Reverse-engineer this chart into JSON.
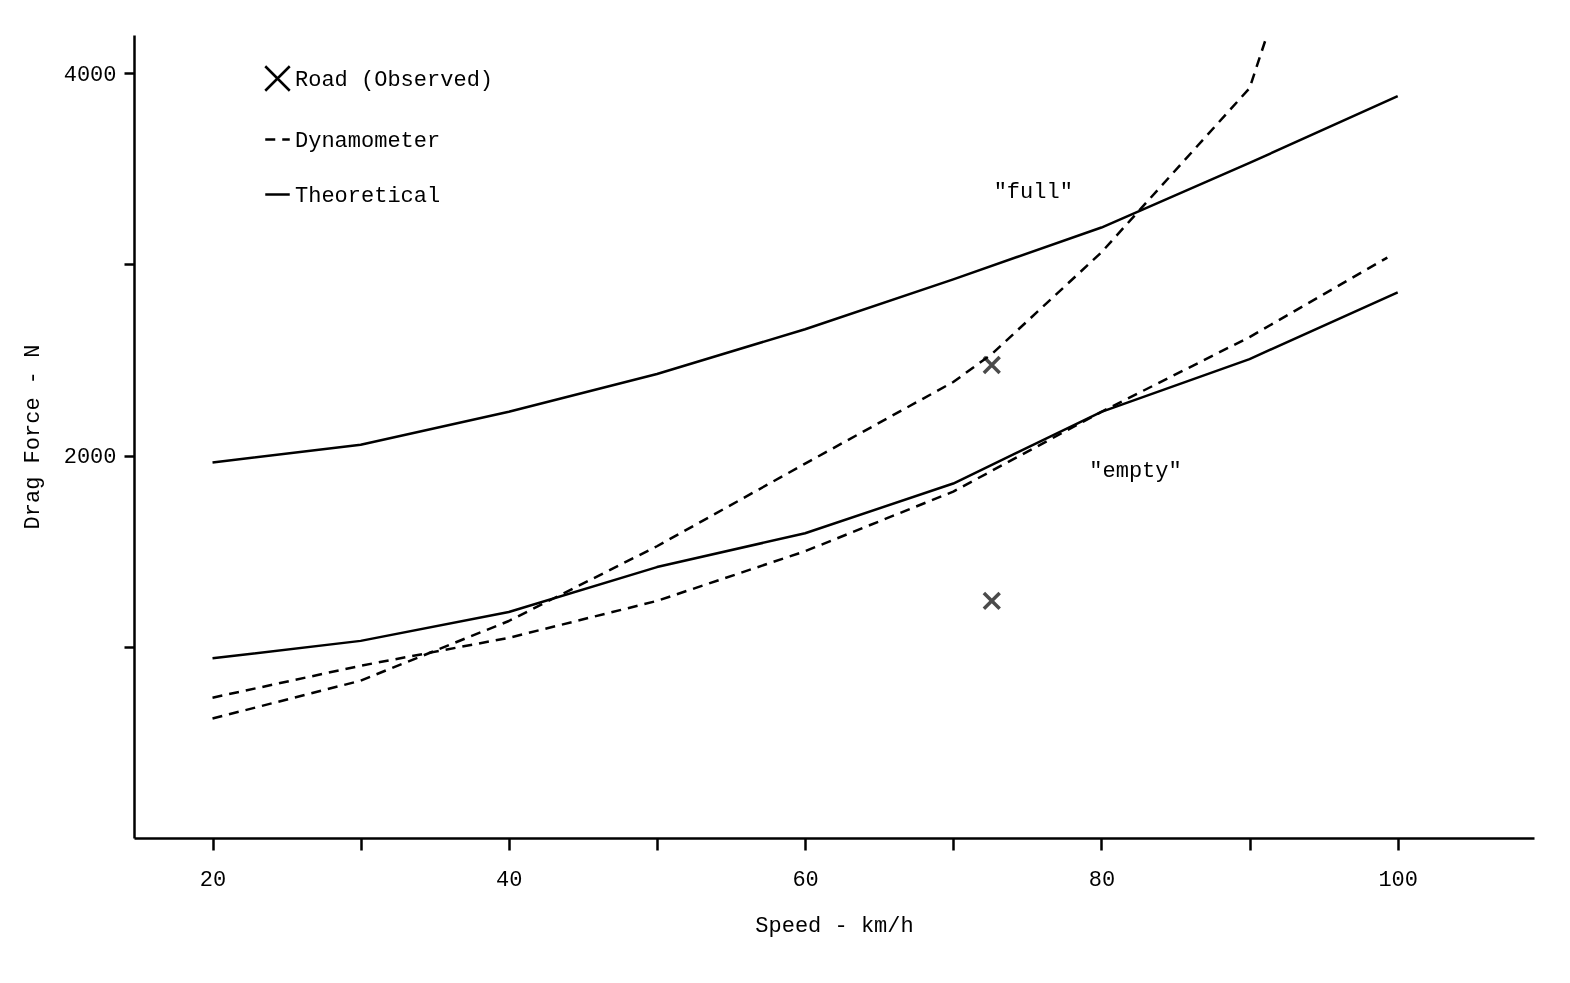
{
  "chart_data": {
    "type": "line",
    "xlabel": "Speed - km/h",
    "ylabel": "Drag Force - N",
    "xlim": [
      14.7,
      109.2
    ],
    "ylim": [
      0,
      4200
    ],
    "xticks": [
      20,
      {
        "value": 30,
        "label": null
      },
      40,
      {
        "value": 50,
        "label": null
      },
      60,
      {
        "value": 70,
        "label": null
      },
      80,
      {
        "value": 90,
        "label": null
      },
      100
    ],
    "yticks": [
      {
        "value": 1000,
        "label": null
      },
      2000,
      {
        "value": 3000,
        "label": null
      },
      4000
    ],
    "grid": false,
    "legend": "top left",
    "series": [
      {
        "name": "Road (Observed)",
        "type": "scatter",
        "marker": "cross",
        "color": "#000000",
        "x": [
          72.6,
          72.6
        ],
        "values": [
          2474,
          1240
        ]
      },
      {
        "name": "Dynamometer",
        "line_style": "dashed",
        "marker": "none",
        "color": "#000000",
        "x": [
          20,
          30,
          40,
          50,
          60,
          70,
          72.6,
          80,
          90,
          91.1
        ],
        "values": [
          625,
          823,
          1135,
          1526,
          1958,
          2385,
          2531,
          3063,
          3922,
          4180
        ]
      },
      {
        "line_style": "dashed",
        "marker": "none",
        "color": "#000000",
        "x": [
          20,
          30,
          40,
          50,
          60,
          70,
          80,
          90,
          99.3
        ],
        "values": [
          734,
          901,
          1047,
          1240,
          1500,
          1812,
          2229,
          2620,
          3036
        ]
      },
      {
        "name": "Theoretical",
        "line_style": "solid",
        "marker": "none",
        "color": "#000000",
        "x": [
          20,
          30,
          40,
          50,
          60,
          70,
          80,
          90,
          100
        ],
        "values": [
          1964,
          2057,
          2229,
          2427,
          2661,
          2922,
          3193,
          3531,
          3880
        ]
      },
      {
        "line_style": "solid",
        "marker": "none",
        "color": "#000000",
        "x": [
          20,
          30,
          40,
          50,
          60,
          70,
          80,
          90,
          100
        ],
        "values": [
          940,
          1031,
          1182,
          1417,
          1594,
          1854,
          2229,
          2505,
          2854
        ]
      }
    ],
    "annotations": [
      {
        "text": "\"full\"",
        "x": 75.4,
        "y": 3068
      },
      {
        "text": "\"empty\"",
        "x": 82.3,
        "y": 2292
      }
    ]
  }
}
